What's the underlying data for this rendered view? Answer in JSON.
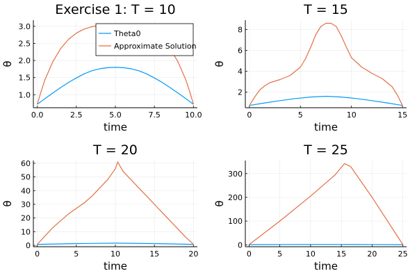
{
  "chart_data": [
    {
      "type": "line",
      "title": "Exercise 1: T = 10",
      "xlabel": "time",
      "ylabel": "θ",
      "xlim": [
        -0.25,
        10.25
      ],
      "ylim": [
        0.62,
        3.18
      ],
      "xticks": [
        0,
        2.5,
        5,
        7.5,
        10
      ],
      "xtick_labels": [
        "0.0",
        "2.5",
        "5.0",
        "7.5",
        "10.0"
      ],
      "yticks": [
        1.0,
        1.5,
        2.0,
        2.5,
        3.0
      ],
      "ytick_labels": [
        "1.0",
        "1.5",
        "2.0",
        "2.5",
        "3.0"
      ],
      "grid": true,
      "legend": "top-right",
      "series": [
        {
          "name": "Theta0",
          "color": "#009af9",
          "x": [
            0,
            0.5,
            1,
            1.5,
            2,
            2.5,
            3,
            3.5,
            4,
            4.5,
            5,
            5.5,
            6,
            6.5,
            7,
            7.5,
            8,
            8.5,
            9,
            9.5,
            10
          ],
          "y": [
            0.72,
            0.89,
            1.05,
            1.21,
            1.36,
            1.49,
            1.61,
            1.7,
            1.76,
            1.79,
            1.8,
            1.79,
            1.76,
            1.7,
            1.61,
            1.49,
            1.36,
            1.21,
            1.05,
            0.89,
            0.72
          ]
        },
        {
          "name": "Approximate Solution",
          "color": "#e26f46",
          "x": [
            0,
            0.25,
            0.5,
            1,
            1.5,
            2,
            2.5,
            3,
            3.5,
            4,
            5,
            6,
            6.5,
            7,
            7.5,
            8,
            8.5,
            9,
            9.5,
            9.75,
            10
          ],
          "y": [
            0.72,
            1.1,
            1.45,
            1.97,
            2.35,
            2.62,
            2.8,
            2.92,
            2.99,
            3.03,
            3.06,
            3.03,
            2.99,
            2.92,
            2.8,
            2.62,
            2.35,
            1.97,
            1.45,
            1.1,
            0.72
          ]
        }
      ]
    },
    {
      "type": "line",
      "title": "T = 15",
      "xlabel": "time",
      "ylabel": "θ",
      "xlim": [
        -0.4,
        15.4
      ],
      "ylim": [
        0.5,
        8.9
      ],
      "xticks": [
        0,
        5,
        10,
        15
      ],
      "xtick_labels": [
        "0",
        "5",
        "10",
        "15"
      ],
      "yticks": [
        2,
        4,
        6,
        8
      ],
      "ytick_labels": [
        "2",
        "4",
        "6",
        "8"
      ],
      "grid": true,
      "series": [
        {
          "name": "Theta0",
          "color": "#009af9",
          "x": [
            0,
            1.5,
            3,
            4.5,
            6,
            7.5,
            9,
            10.5,
            12,
            13.5,
            15
          ],
          "y": [
            0.72,
            0.96,
            1.18,
            1.38,
            1.53,
            1.6,
            1.53,
            1.38,
            1.18,
            0.96,
            0.72
          ]
        },
        {
          "name": "Approximate Solution",
          "color": "#e26f46",
          "x": [
            0,
            0.5,
            1,
            1.5,
            2,
            3,
            4,
            5,
            5.5,
            6,
            6.5,
            7,
            7.5,
            8,
            8.5,
            9,
            9.5,
            10,
            11,
            12,
            13,
            14,
            14.5,
            15
          ],
          "y": [
            0.72,
            1.5,
            2.2,
            2.6,
            2.9,
            3.2,
            3.6,
            4.4,
            5.2,
            6.3,
            7.5,
            8.3,
            8.6,
            8.6,
            8.3,
            7.4,
            6.3,
            5.3,
            4.4,
            3.8,
            3.3,
            2.5,
            1.7,
            0.72
          ]
        }
      ]
    },
    {
      "type": "line",
      "title": "T = 20",
      "xlabel": "time",
      "ylabel": "θ",
      "xlim": [
        -0.5,
        20.5
      ],
      "ylim": [
        -1,
        62
      ],
      "xticks": [
        0,
        5,
        10,
        15,
        20
      ],
      "xtick_labels": [
        "0",
        "5",
        "10",
        "15",
        "20"
      ],
      "yticks": [
        0,
        10,
        20,
        30,
        40,
        50,
        60
      ],
      "ytick_labels": [
        "0",
        "10",
        "20",
        "30",
        "40",
        "50",
        "60"
      ],
      "grid": true,
      "series": [
        {
          "name": "Theta0",
          "color": "#009af9",
          "x": [
            0,
            5,
            10,
            15,
            20
          ],
          "y": [
            0.72,
            1.3,
            1.6,
            1.3,
            0.72
          ]
        },
        {
          "name": "Approximate Solution",
          "color": "#e26f46",
          "x": [
            0,
            1,
            2,
            3,
            4,
            5,
            6,
            7,
            8,
            9,
            9.5,
            10,
            10.3,
            10.6,
            11,
            12,
            13,
            14,
            15,
            16,
            17,
            18,
            19,
            20
          ],
          "y": [
            0.72,
            7,
            13,
            18,
            23,
            27,
            31,
            36,
            42,
            48,
            52,
            56,
            61,
            58,
            54,
            48,
            42,
            36,
            30,
            24,
            18,
            12,
            6,
            0.72
          ]
        }
      ]
    },
    {
      "type": "line",
      "title": "T = 25",
      "xlabel": "time",
      "ylabel": "θ",
      "xlim": [
        -0.6,
        25.6
      ],
      "ylim": [
        -8,
        355
      ],
      "xticks": [
        0,
        5,
        10,
        15,
        20,
        25
      ],
      "xtick_labels": [
        "0",
        "5",
        "10",
        "15",
        "20",
        "25"
      ],
      "yticks": [
        0,
        100,
        200,
        300
      ],
      "ytick_labels": [
        "0",
        "100",
        "200",
        "300"
      ],
      "grid": true,
      "series": [
        {
          "name": "Theta0",
          "color": "#009af9",
          "x": [
            0,
            5,
            10,
            15,
            20,
            25
          ],
          "y": [
            0.72,
            1.3,
            1.6,
            1.6,
            1.3,
            0.72
          ]
        },
        {
          "name": "Approximate Solution",
          "color": "#e26f46",
          "x": [
            0,
            5,
            10,
            14,
            15.5,
            16.5,
            20,
            25
          ],
          "y": [
            0.72,
            100,
            205,
            295,
            342,
            330,
            200,
            0.72
          ]
        }
      ]
    }
  ]
}
